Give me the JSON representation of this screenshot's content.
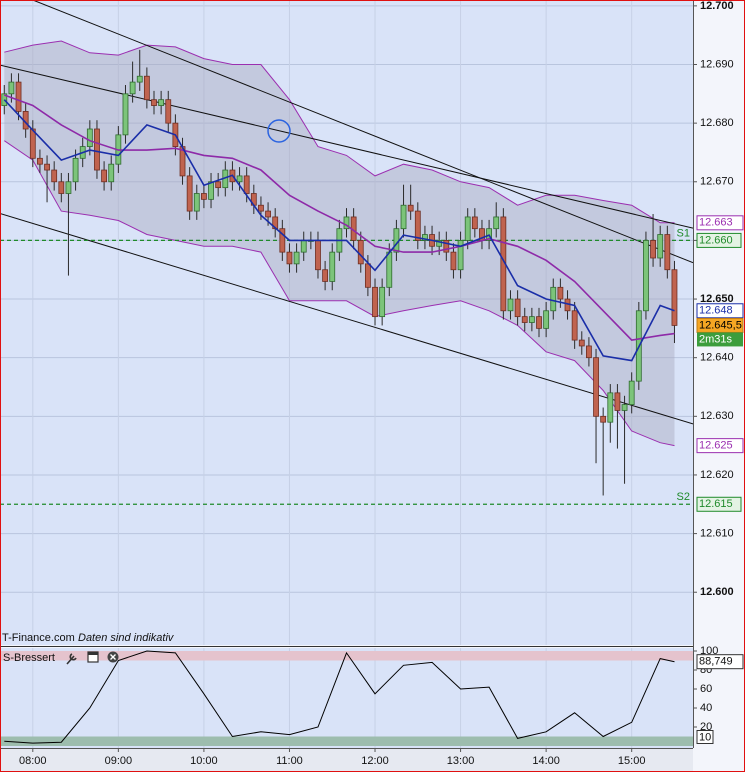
{
  "chart_data": [
    {
      "type": "candlestick",
      "source": "T-Finance.com",
      "note": "Daten sind indikativ",
      "x": [
        "07:40",
        "07:45",
        "07:50",
        "07:55",
        "08:00",
        "08:05",
        "08:10",
        "08:15",
        "08:20",
        "08:25",
        "08:30",
        "08:35",
        "08:40",
        "08:45",
        "08:50",
        "08:55",
        "09:00",
        "09:05",
        "09:10",
        "09:15",
        "09:20",
        "09:25",
        "09:30",
        "09:35",
        "09:40",
        "09:45",
        "09:50",
        "09:55",
        "10:00",
        "10:05",
        "10:10",
        "10:15",
        "10:20",
        "10:25",
        "10:30",
        "10:35",
        "10:40",
        "10:45",
        "10:50",
        "10:55",
        "11:00",
        "11:05",
        "11:10",
        "11:15",
        "11:20",
        "11:25",
        "11:30",
        "11:35",
        "11:40",
        "11:45",
        "11:50",
        "11:55",
        "12:00",
        "12:05",
        "12:10",
        "12:15",
        "12:20",
        "12:25",
        "12:30",
        "12:35",
        "12:40",
        "12:45",
        "12:50",
        "12:55",
        "13:00",
        "13:05",
        "13:10",
        "13:15",
        "13:20",
        "13:25",
        "13:30",
        "13:35",
        "13:40",
        "13:45",
        "13:50",
        "13:55",
        "14:00",
        "14:05",
        "14:10",
        "14:15",
        "14:20",
        "14:25",
        "14:30",
        "14:35",
        "14:40",
        "14:45",
        "14:50",
        "14:55",
        "15:00",
        "15:05",
        "15:10",
        "15:15",
        "15:20",
        "15:25",
        "15:30"
      ],
      "open": [
        12.683,
        12.685,
        12.687,
        12.682,
        12.679,
        12.674,
        12.673,
        12.672,
        12.67,
        12.668,
        12.67,
        12.674,
        12.676,
        12.679,
        12.672,
        12.67,
        12.673,
        12.678,
        12.685,
        12.687,
        12.688,
        12.684,
        12.683,
        12.684,
        12.68,
        12.676,
        12.671,
        12.665,
        12.668,
        12.667,
        12.67,
        12.669,
        12.672,
        12.67,
        12.671,
        12.668,
        12.666,
        12.665,
        12.664,
        12.662,
        12.658,
        12.656,
        12.658,
        12.66,
        12.66,
        12.655,
        12.653,
        12.658,
        12.662,
        12.664,
        12.66,
        12.656,
        12.652,
        12.647,
        12.652,
        12.658,
        12.662,
        12.666,
        12.665,
        12.66,
        12.661,
        12.659,
        12.66,
        12.658,
        12.655,
        12.66,
        12.664,
        12.662,
        12.66,
        12.662,
        12.664,
        12.648,
        12.65,
        12.647,
        12.646,
        12.647,
        12.645,
        12.648,
        12.652,
        12.65,
        12.648,
        12.643,
        12.642,
        12.64,
        12.63,
        12.629,
        12.634,
        12.631,
        12.632,
        12.636,
        12.648,
        12.66,
        12.657,
        12.661,
        12.655
      ],
      "high": [
        12.6865,
        12.6885,
        12.6885,
        12.6835,
        12.6805,
        12.6755,
        12.6745,
        12.6735,
        12.6715,
        12.6715,
        12.6755,
        12.6775,
        12.6805,
        12.6805,
        12.6735,
        12.6745,
        12.6795,
        12.6865,
        12.6905,
        12.6925,
        12.6895,
        12.6855,
        12.6855,
        12.6855,
        12.6815,
        12.6775,
        12.6725,
        12.6695,
        12.6695,
        12.6715,
        12.6715,
        12.6735,
        12.6735,
        12.6725,
        12.6725,
        12.6695,
        12.6675,
        12.6665,
        12.6655,
        12.6635,
        12.6595,
        12.6595,
        12.6615,
        12.6615,
        12.6615,
        12.6565,
        12.6595,
        12.6635,
        12.6655,
        12.6655,
        12.6615,
        12.6575,
        12.6535,
        12.6535,
        12.6595,
        12.6635,
        12.6695,
        12.6695,
        12.6665,
        12.6625,
        12.6625,
        12.6615,
        12.6615,
        12.6595,
        12.6615,
        12.6655,
        12.6655,
        12.6635,
        12.6635,
        12.6665,
        12.6655,
        12.6515,
        12.6515,
        12.6485,
        12.6485,
        12.6485,
        12.6495,
        12.6535,
        12.6535,
        12.6515,
        12.6495,
        12.6445,
        12.6435,
        12.6415,
        12.6315,
        12.6355,
        12.6355,
        12.6335,
        12.6375,
        12.6495,
        12.6615,
        12.6645,
        12.6625,
        12.6625,
        12.6565
      ],
      "low": [
        12.6815,
        12.6835,
        12.6805,
        12.6775,
        12.6725,
        12.6715,
        12.6665,
        12.6685,
        12.6665,
        12.654,
        12.6685,
        12.6725,
        12.6745,
        12.6705,
        12.6685,
        12.6685,
        12.6715,
        12.6765,
        12.6835,
        12.6855,
        12.6825,
        12.6815,
        12.6815,
        12.6785,
        12.6745,
        12.6695,
        12.6635,
        12.6635,
        12.6655,
        12.6655,
        12.6675,
        12.6675,
        12.6685,
        12.6685,
        12.6665,
        12.6645,
        12.6635,
        12.6625,
        12.6605,
        12.6565,
        12.6545,
        12.6545,
        12.6565,
        12.6585,
        12.6535,
        12.6515,
        12.6515,
        12.6565,
        12.6605,
        12.6585,
        12.6545,
        12.6505,
        12.6455,
        12.6455,
        12.6505,
        12.6565,
        12.6605,
        12.6635,
        12.6585,
        12.6585,
        12.6575,
        12.6575,
        12.6565,
        12.6535,
        12.6535,
        12.6585,
        12.6605,
        12.6585,
        12.6585,
        12.6605,
        12.6465,
        12.6465,
        12.6455,
        12.6445,
        12.6445,
        12.6435,
        12.6435,
        12.6465,
        12.6485,
        12.6465,
        12.6415,
        12.6405,
        12.6385,
        12.622,
        12.6165,
        12.6255,
        12.6245,
        12.6185,
        12.6305,
        12.6345,
        12.6465,
        12.6555,
        12.6555,
        12.6535,
        12.6425
      ],
      "close": [
        12.685,
        12.687,
        12.682,
        12.679,
        12.674,
        12.673,
        12.672,
        12.67,
        12.668,
        12.67,
        12.674,
        12.676,
        12.679,
        12.672,
        12.67,
        12.673,
        12.678,
        12.685,
        12.687,
        12.688,
        12.684,
        12.683,
        12.684,
        12.68,
        12.676,
        12.671,
        12.665,
        12.668,
        12.667,
        12.67,
        12.669,
        12.672,
        12.67,
        12.671,
        12.668,
        12.666,
        12.665,
        12.664,
        12.662,
        12.658,
        12.656,
        12.658,
        12.66,
        12.66,
        12.655,
        12.653,
        12.658,
        12.662,
        12.664,
        12.66,
        12.656,
        12.652,
        12.647,
        12.652,
        12.658,
        12.662,
        12.666,
        12.665,
        12.66,
        12.661,
        12.659,
        12.66,
        12.658,
        12.655,
        12.66,
        12.664,
        12.662,
        12.66,
        12.662,
        12.664,
        12.648,
        12.65,
        12.647,
        12.646,
        12.647,
        12.645,
        12.648,
        12.652,
        12.65,
        12.648,
        12.643,
        12.642,
        12.64,
        12.63,
        12.629,
        12.634,
        12.631,
        12.632,
        12.636,
        12.648,
        12.66,
        12.657,
        12.661,
        12.655,
        12.6455
      ],
      "up_color": "#7cc47a",
      "down_color": "#c0634f",
      "overlay_x": [
        "07:40",
        "08:00",
        "08:20",
        "08:40",
        "09:00",
        "09:20",
        "09:40",
        "10:00",
        "10:20",
        "10:40",
        "11:00",
        "11:20",
        "11:40",
        "12:00",
        "12:20",
        "12:40",
        "13:00",
        "13:20",
        "13:40",
        "14:00",
        "14:20",
        "14:40",
        "15:00",
        "15:20",
        "15:30"
      ],
      "bands": {
        "color": "#9b2fb0",
        "fill": "#a8a9be",
        "upper": [
          12.6921,
          12.6933,
          12.694,
          12.692,
          12.6916,
          12.6933,
          12.693,
          12.691,
          12.69,
          12.69,
          12.684,
          12.676,
          12.6745,
          12.671,
          12.673,
          12.672,
          12.67,
          12.669,
          12.666,
          12.6677,
          12.6677,
          12.6668,
          12.666,
          12.663,
          12.663
        ],
        "lower": [
          12.677,
          12.6737,
          12.665,
          12.6643,
          12.6634,
          12.661,
          12.66,
          12.659,
          12.659,
          12.658,
          12.6497,
          12.6497,
          12.6497,
          12.647,
          12.648,
          12.6489,
          12.6497,
          12.648,
          12.6455,
          12.641,
          12.6395,
          12.6344,
          12.6275,
          12.6255,
          12.625
        ]
      },
      "averages": [
        {
          "color": "#8e2aa8",
          "values": [
            12.6848,
            12.683,
            12.6797,
            12.677,
            12.6754,
            12.6754,
            12.6757,
            12.6745,
            12.674,
            12.672,
            12.6677,
            12.665,
            12.6626,
            12.659,
            12.658,
            12.658,
            12.659,
            12.6603,
            12.659,
            12.6566,
            12.653,
            12.648,
            12.643,
            12.6438,
            12.6441
          ]
        },
        {
          "color": "#1a2ea8",
          "values": [
            12.684,
            12.6788,
            12.6737,
            12.6754,
            12.6745,
            12.6797,
            12.678,
            12.6694,
            12.6711,
            12.6643,
            12.66,
            12.66,
            12.66,
            12.6549,
            12.6609,
            12.66,
            12.659,
            12.6609,
            12.6523,
            12.65,
            12.6489,
            12.6403,
            12.6395,
            12.6489,
            12.648
          ]
        }
      ],
      "trendlines": [
        {
          "x": [
            "08:00",
            "15:43"
          ],
          "y": [
            12.701,
            12.6562
          ]
        },
        {
          "x": [
            "07:37",
            "15:43"
          ],
          "y": [
            12.6899,
            12.6621
          ]
        },
        {
          "x": [
            "07:37",
            "15:43"
          ],
          "y": [
            12.6646,
            12.6287
          ]
        }
      ],
      "levels": [
        {
          "name": "S1",
          "value": 12.66,
          "label": "12.660",
          "color": "#1f8a2a"
        },
        {
          "name": "S2",
          "value": 12.615,
          "color": "#1f8a2a"
        }
      ],
      "markers": [
        {
          "value": 12.663,
          "color": "#9b2fb0",
          "background": "#ffffff"
        },
        {
          "value": 12.648,
          "color": "#1a2ea8",
          "background": "#ffffff"
        },
        {
          "value": 12.6455,
          "label": "12.645,5",
          "color": "#000000",
          "background": "#f5a623"
        },
        {
          "value": 12.625,
          "color": "#9b2fb0",
          "background": "#ffffff"
        }
      ],
      "countdown": "2m31s",
      "countdown_color": "#3c9d3c",
      "xlim": [
        "07:37",
        "15:43"
      ],
      "xticks": [
        "08:00",
        "09:00",
        "10:00",
        "11:00",
        "12:00",
        "13:00",
        "14:00",
        "15:00"
      ],
      "ylim": [
        12.591,
        12.701
      ],
      "yticks": [
        {
          "value": 12.6,
          "label": "12.600"
        },
        {
          "value": 12.61,
          "label": "12.610"
        },
        {
          "value": 12.62,
          "label": "12.620"
        },
        {
          "value": 12.63,
          "label": "12.630"
        },
        {
          "value": 12.64,
          "label": "12.640"
        },
        {
          "value": 12.65,
          "label": "12.650"
        },
        {
          "value": 12.66,
          "label": "12.660"
        },
        {
          "value": 12.67,
          "label": "12.670"
        },
        {
          "value": 12.68,
          "label": "12.680"
        },
        {
          "value": 12.69,
          "label": "12.690"
        },
        {
          "value": 12.7,
          "label": "12.700"
        }
      ],
      "grid": true
    },
    {
      "type": "line",
      "title": "S-Bressert",
      "color": "#000000",
      "x": [
        "07:40",
        "08:00",
        "08:20",
        "08:40",
        "09:00",
        "09:20",
        "09:40",
        "10:00",
        "10:20",
        "10:40",
        "11:00",
        "11:20",
        "11:40",
        "12:00",
        "12:20",
        "12:40",
        "13:00",
        "13:20",
        "13:40",
        "14:00",
        "14:20",
        "14:40",
        "15:00",
        "15:20",
        "15:30"
      ],
      "values": [
        5,
        3,
        4,
        40,
        90,
        100,
        98,
        55,
        10,
        15,
        12,
        20,
        98,
        55,
        85,
        88,
        60,
        62,
        8,
        15,
        35,
        10,
        25,
        92,
        88.749
      ],
      "last_value": {
        "value": 88.749,
        "label": "88,749"
      },
      "upper_band": [
        90,
        100
      ],
      "upper_band_color": "#e5c3cd",
      "lower_band": [
        0,
        10
      ],
      "lower_band_color": "#9dbdae",
      "ylim": [
        0,
        100
      ],
      "yticks": [
        20,
        40,
        60,
        80,
        100
      ]
    }
  ]
}
